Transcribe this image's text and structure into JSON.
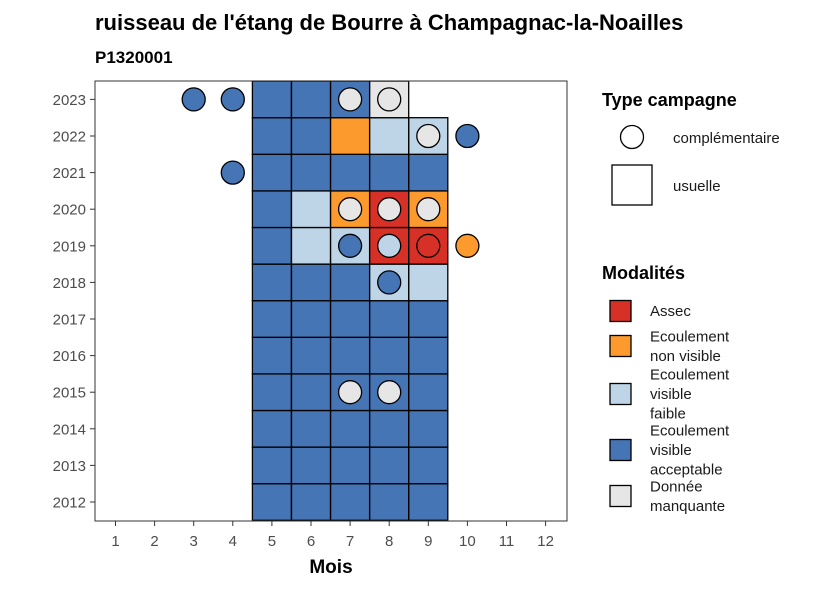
{
  "chart_data": {
    "type": "heatmap",
    "title": "ruisseau de l'étang de Bourre à Champagnac-la-Noailles",
    "subtitle": "P1320001",
    "xlabel": "Mois",
    "ylabel": "",
    "x_ticks": [
      "1",
      "2",
      "3",
      "4",
      "5",
      "6",
      "7",
      "8",
      "9",
      "10",
      "11",
      "12"
    ],
    "y_ticks": [
      "2012",
      "2013",
      "2014",
      "2015",
      "2016",
      "2017",
      "2018",
      "2019",
      "2020",
      "2021",
      "2022",
      "2023"
    ],
    "categories_months": [
      1,
      2,
      3,
      4,
      5,
      6,
      7,
      8,
      9,
      10,
      11,
      12
    ],
    "years": [
      2012,
      2013,
      2014,
      2015,
      2016,
      2017,
      2018,
      2019,
      2020,
      2021,
      2022,
      2023
    ],
    "legend_shape": {
      "title": "Type campagne",
      "items": [
        {
          "key": "complementaire",
          "label": "complémentaire",
          "shape": "circle"
        },
        {
          "key": "usuelle",
          "label": "usuelle",
          "shape": "square"
        }
      ]
    },
    "legend_fill": {
      "title": "Modalités",
      "items": [
        {
          "key": "assec",
          "lines": [
            "Assec"
          ],
          "color": "#d73027"
        },
        {
          "key": "nonvisible",
          "lines": [
            "Ecoulement",
            "non visible"
          ],
          "color": "#fd9a2e"
        },
        {
          "key": "faible",
          "lines": [
            "Ecoulement",
            "visible",
            "faible"
          ],
          "color": "#bdd5e6"
        },
        {
          "key": "acceptable",
          "lines": [
            "Ecoulement",
            "visible",
            "acceptable"
          ],
          "color": "#4575b4"
        },
        {
          "key": "manquante",
          "lines": [
            "Donnée",
            "manquante"
          ],
          "color": "#e6e6e6"
        }
      ]
    },
    "usuelle": [
      {
        "year": 2012,
        "month": 5,
        "value": "acceptable"
      },
      {
        "year": 2012,
        "month": 6,
        "value": "acceptable"
      },
      {
        "year": 2012,
        "month": 7,
        "value": "acceptable"
      },
      {
        "year": 2012,
        "month": 8,
        "value": "acceptable"
      },
      {
        "year": 2012,
        "month": 9,
        "value": "acceptable"
      },
      {
        "year": 2013,
        "month": 5,
        "value": "acceptable"
      },
      {
        "year": 2013,
        "month": 6,
        "value": "acceptable"
      },
      {
        "year": 2013,
        "month": 7,
        "value": "acceptable"
      },
      {
        "year": 2013,
        "month": 8,
        "value": "acceptable"
      },
      {
        "year": 2013,
        "month": 9,
        "value": "acceptable"
      },
      {
        "year": 2014,
        "month": 5,
        "value": "acceptable"
      },
      {
        "year": 2014,
        "month": 6,
        "value": "acceptable"
      },
      {
        "year": 2014,
        "month": 7,
        "value": "acceptable"
      },
      {
        "year": 2014,
        "month": 8,
        "value": "acceptable"
      },
      {
        "year": 2014,
        "month": 9,
        "value": "acceptable"
      },
      {
        "year": 2015,
        "month": 5,
        "value": "acceptable"
      },
      {
        "year": 2015,
        "month": 6,
        "value": "acceptable"
      },
      {
        "year": 2015,
        "month": 7,
        "value": "acceptable"
      },
      {
        "year": 2015,
        "month": 8,
        "value": "acceptable"
      },
      {
        "year": 2015,
        "month": 9,
        "value": "acceptable"
      },
      {
        "year": 2016,
        "month": 5,
        "value": "acceptable"
      },
      {
        "year": 2016,
        "month": 6,
        "value": "acceptable"
      },
      {
        "year": 2016,
        "month": 7,
        "value": "acceptable"
      },
      {
        "year": 2016,
        "month": 8,
        "value": "acceptable"
      },
      {
        "year": 2016,
        "month": 9,
        "value": "acceptable"
      },
      {
        "year": 2017,
        "month": 5,
        "value": "acceptable"
      },
      {
        "year": 2017,
        "month": 6,
        "value": "acceptable"
      },
      {
        "year": 2017,
        "month": 7,
        "value": "acceptable"
      },
      {
        "year": 2017,
        "month": 8,
        "value": "acceptable"
      },
      {
        "year": 2017,
        "month": 9,
        "value": "acceptable"
      },
      {
        "year": 2018,
        "month": 5,
        "value": "acceptable"
      },
      {
        "year": 2018,
        "month": 6,
        "value": "acceptable"
      },
      {
        "year": 2018,
        "month": 7,
        "value": "acceptable"
      },
      {
        "year": 2018,
        "month": 8,
        "value": "faible"
      },
      {
        "year": 2018,
        "month": 9,
        "value": "faible"
      },
      {
        "year": 2019,
        "month": 5,
        "value": "acceptable"
      },
      {
        "year": 2019,
        "month": 6,
        "value": "faible"
      },
      {
        "year": 2019,
        "month": 7,
        "value": "faible"
      },
      {
        "year": 2019,
        "month": 8,
        "value": "assec"
      },
      {
        "year": 2019,
        "month": 9,
        "value": "assec"
      },
      {
        "year": 2020,
        "month": 5,
        "value": "acceptable"
      },
      {
        "year": 2020,
        "month": 6,
        "value": "faible"
      },
      {
        "year": 2020,
        "month": 7,
        "value": "nonvisible"
      },
      {
        "year": 2020,
        "month": 8,
        "value": "assec"
      },
      {
        "year": 2020,
        "month": 9,
        "value": "nonvisible"
      },
      {
        "year": 2021,
        "month": 5,
        "value": "acceptable"
      },
      {
        "year": 2021,
        "month": 6,
        "value": "acceptable"
      },
      {
        "year": 2021,
        "month": 7,
        "value": "acceptable"
      },
      {
        "year": 2021,
        "month": 8,
        "value": "acceptable"
      },
      {
        "year": 2021,
        "month": 9,
        "value": "acceptable"
      },
      {
        "year": 2022,
        "month": 5,
        "value": "acceptable"
      },
      {
        "year": 2022,
        "month": 6,
        "value": "acceptable"
      },
      {
        "year": 2022,
        "month": 7,
        "value": "nonvisible"
      },
      {
        "year": 2022,
        "month": 8,
        "value": "faible"
      },
      {
        "year": 2022,
        "month": 9,
        "value": "faible"
      },
      {
        "year": 2023,
        "month": 5,
        "value": "acceptable"
      },
      {
        "year": 2023,
        "month": 6,
        "value": "acceptable"
      },
      {
        "year": 2023,
        "month": 7,
        "value": "acceptable"
      },
      {
        "year": 2023,
        "month": 8,
        "value": "manquante"
      }
    ],
    "complementaire": [
      {
        "year": 2023,
        "month": 3,
        "value": "acceptable"
      },
      {
        "year": 2023,
        "month": 4,
        "value": "acceptable"
      },
      {
        "year": 2023,
        "month": 7,
        "value": "manquante"
      },
      {
        "year": 2023,
        "month": 8,
        "value": "manquante"
      },
      {
        "year": 2022,
        "month": 9,
        "value": "manquante"
      },
      {
        "year": 2022,
        "month": 10,
        "value": "acceptable"
      },
      {
        "year": 2021,
        "month": 4,
        "value": "acceptable"
      },
      {
        "year": 2020,
        "month": 7,
        "value": "manquante"
      },
      {
        "year": 2020,
        "month": 8,
        "value": "manquante"
      },
      {
        "year": 2020,
        "month": 9,
        "value": "manquante"
      },
      {
        "year": 2019,
        "month": 7,
        "value": "acceptable"
      },
      {
        "year": 2019,
        "month": 8,
        "value": "faible"
      },
      {
        "year": 2019,
        "month": 9,
        "value": "assec"
      },
      {
        "year": 2019,
        "month": 10,
        "value": "nonvisible"
      },
      {
        "year": 2018,
        "month": 8,
        "value": "acceptable"
      },
      {
        "year": 2015,
        "month": 7,
        "value": "manquante"
      },
      {
        "year": 2015,
        "month": 8,
        "value": "manquante"
      }
    ]
  }
}
